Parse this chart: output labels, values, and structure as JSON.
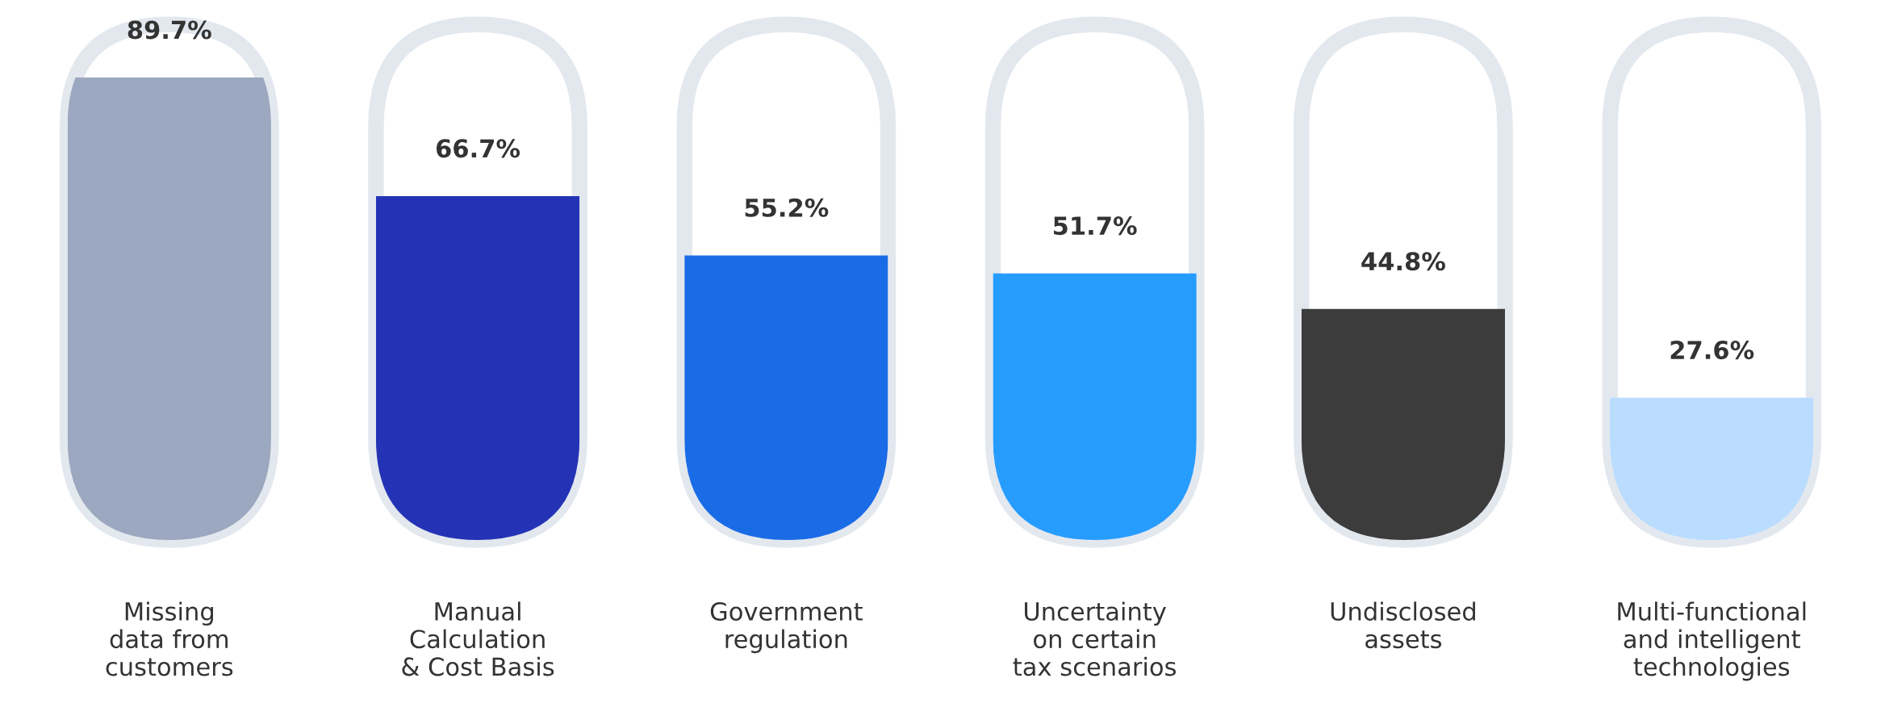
{
  "chart_data": {
    "type": "bar",
    "categories": [
      "Missing\ndata from\ncustomers",
      "Manual\nCalculation\n& Cost Basis",
      "Government\nregulation",
      "Uncertainty\non certain\ntax scenarios",
      "Undisclosed\nassets",
      "Multi-functional\nand intelligent\ntechnologies"
    ],
    "values": [
      89.7,
      66.7,
      55.2,
      51.7,
      44.8,
      27.6
    ],
    "colors": [
      "#9ba8bf",
      "#2433b5",
      "#1a6be6",
      "#279cff",
      "#3c3c3c",
      "#b9dcff"
    ],
    "value_labels": [
      "89.7%",
      "66.7%",
      "55.2%",
      "51.7%",
      "44.8%",
      "27.6%"
    ],
    "ylim": [
      0,
      100
    ],
    "grid": false,
    "legend": false
  }
}
